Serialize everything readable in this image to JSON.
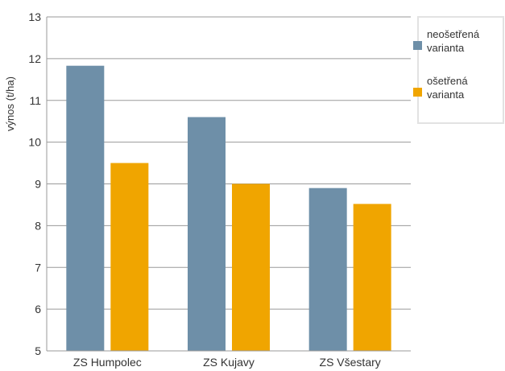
{
  "chart_data": {
    "type": "bar",
    "ylabel": "výnos (t/ha)",
    "xlabel": "",
    "ylim": [
      5,
      13
    ],
    "yticks": [
      5,
      6,
      7,
      8,
      9,
      10,
      11,
      12,
      13
    ],
    "categories": [
      "ZS Humpolec",
      "ZS Kujavy",
      "ZS Všestary"
    ],
    "series": [
      {
        "name": "neošetřená varianta",
        "name_lines": [
          "neošetřená",
          "varianta"
        ],
        "color": "#6e8fa8",
        "values": [
          11.83,
          10.6,
          8.9
        ]
      },
      {
        "name": "ošetřená varianta",
        "name_lines": [
          "ošetřená",
          "varianta"
        ],
        "color": "#f0a500",
        "values": [
          9.5,
          9.0,
          8.52
        ]
      }
    ],
    "grid": true,
    "legend_position": "top-right"
  }
}
